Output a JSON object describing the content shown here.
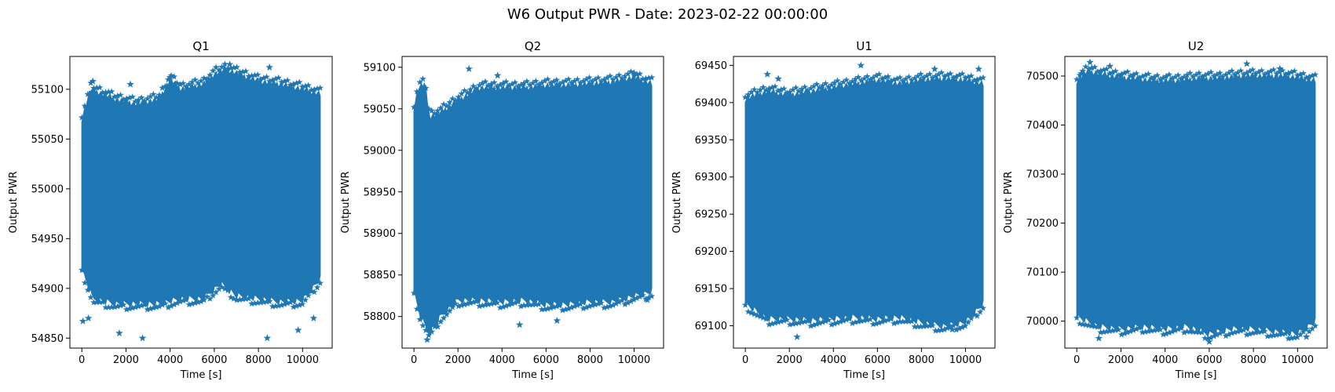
{
  "figure": {
    "title": "W6 Output PWR - Date: 2023-02-22 00:00:00",
    "marker": "star",
    "point_color": "#1f77b4"
  },
  "chart_data": [
    {
      "type": "scatter",
      "title": "Q1",
      "xlabel": "Time [s]",
      "ylabel": "Output PWR",
      "xlim": [
        -540,
        11340
      ],
      "ylim": [
        54840,
        55133
      ],
      "xticks": [
        0,
        2000,
        4000,
        6000,
        8000,
        10000
      ],
      "yticks": [
        54850,
        54900,
        54950,
        55000,
        55050,
        55100
      ],
      "grid": false,
      "x_range": [
        0,
        10800
      ],
      "upper_envelope": [
        [
          0,
          55070
        ],
        [
          400,
          55100
        ],
        [
          1500,
          55090
        ],
        [
          2500,
          55085
        ],
        [
          3500,
          55090
        ],
        [
          4000,
          55110
        ],
        [
          4500,
          55100
        ],
        [
          5500,
          55105
        ],
        [
          6000,
          55115
        ],
        [
          6500,
          55120
        ],
        [
          8000,
          55108
        ],
        [
          9000,
          55105
        ],
        [
          10000,
          55100
        ],
        [
          10800,
          55095
        ]
      ],
      "lower_envelope": [
        [
          0,
          54920
        ],
        [
          500,
          54890
        ],
        [
          1500,
          54885
        ],
        [
          2500,
          54885
        ],
        [
          3500,
          54885
        ],
        [
          4500,
          54890
        ],
        [
          5500,
          54890
        ],
        [
          6300,
          54905
        ],
        [
          7000,
          54893
        ],
        [
          8000,
          54890
        ],
        [
          9000,
          54887
        ],
        [
          10000,
          54888
        ],
        [
          10800,
          54910
        ]
      ],
      "outliers": [
        [
          50,
          54867
        ],
        [
          300,
          54870
        ],
        [
          1700,
          54855
        ],
        [
          2750,
          54850
        ],
        [
          8400,
          54850
        ],
        [
          9800,
          54858
        ],
        [
          10500,
          54870
        ],
        [
          500,
          55108
        ],
        [
          2200,
          55105
        ],
        [
          6700,
          55125
        ],
        [
          8500,
          55122
        ],
        [
          4000,
          55112
        ]
      ]
    },
    {
      "type": "scatter",
      "title": "Q2",
      "xlabel": "Time [s]",
      "ylabel": "Output PWR",
      "xlim": [
        -540,
        11340
      ],
      "ylim": [
        58762,
        59113
      ],
      "xticks": [
        0,
        2000,
        4000,
        6000,
        8000,
        10000
      ],
      "yticks": [
        58800,
        58850,
        58900,
        58950,
        59000,
        59050,
        59100
      ],
      "grid": false,
      "x_range": [
        0,
        10800
      ],
      "upper_envelope": [
        [
          0,
          59050
        ],
        [
          200,
          59075
        ],
        [
          500,
          59080
        ],
        [
          700,
          59040
        ],
        [
          1200,
          59045
        ],
        [
          2000,
          59060
        ],
        [
          3000,
          59075
        ],
        [
          4000,
          59075
        ],
        [
          5000,
          59075
        ],
        [
          6000,
          59078
        ],
        [
          7000,
          59078
        ],
        [
          8000,
          59080
        ],
        [
          9000,
          59082
        ],
        [
          10000,
          59088
        ],
        [
          10800,
          59080
        ]
      ],
      "lower_envelope": [
        [
          0,
          58830
        ],
        [
          300,
          58800
        ],
        [
          700,
          58780
        ],
        [
          1200,
          58800
        ],
        [
          2000,
          58820
        ],
        [
          3000,
          58820
        ],
        [
          4000,
          58818
        ],
        [
          5000,
          58820
        ],
        [
          6000,
          58815
        ],
        [
          7000,
          58815
        ],
        [
          8000,
          58818
        ],
        [
          9000,
          58818
        ],
        [
          10000,
          58825
        ],
        [
          10800,
          58830
        ]
      ],
      "outliers": [
        [
          600,
          58772
        ],
        [
          1000,
          58790
        ],
        [
          4800,
          58790
        ],
        [
          6500,
          58795
        ],
        [
          2500,
          59098
        ],
        [
          3800,
          59090
        ],
        [
          10000,
          59093
        ],
        [
          10600,
          58820
        ]
      ]
    },
    {
      "type": "scatter",
      "title": "U1",
      "xlabel": "Time [s]",
      "ylabel": "Output PWR",
      "xlim": [
        -540,
        11340
      ],
      "ylim": [
        69070,
        69462
      ],
      "xticks": [
        0,
        2000,
        4000,
        6000,
        8000,
        10000
      ],
      "yticks": [
        69100,
        69150,
        69200,
        69250,
        69300,
        69350,
        69400,
        69450
      ],
      "grid": false,
      "x_range": [
        0,
        10800
      ],
      "upper_envelope": [
        [
          0,
          69405
        ],
        [
          1000,
          69415
        ],
        [
          2000,
          69410
        ],
        [
          3000,
          69415
        ],
        [
          4000,
          69420
        ],
        [
          5000,
          69425
        ],
        [
          6000,
          69430
        ],
        [
          7000,
          69425
        ],
        [
          8000,
          69430
        ],
        [
          9000,
          69432
        ],
        [
          10000,
          69430
        ],
        [
          10800,
          69425
        ]
      ],
      "lower_envelope": [
        [
          0,
          69130
        ],
        [
          1000,
          69110
        ],
        [
          2000,
          69110
        ],
        [
          3000,
          69108
        ],
        [
          4000,
          69110
        ],
        [
          5000,
          69112
        ],
        [
          6000,
          69110
        ],
        [
          7000,
          69112
        ],
        [
          8000,
          69105
        ],
        [
          9000,
          69100
        ],
        [
          10000,
          69105
        ],
        [
          10800,
          69130
        ]
      ],
      "outliers": [
        [
          1000,
          69438
        ],
        [
          1500,
          69432
        ],
        [
          5250,
          69450
        ],
        [
          2350,
          69085
        ],
        [
          8600,
          69445
        ],
        [
          10600,
          69445
        ],
        [
          9400,
          69095
        ]
      ]
    },
    {
      "type": "scatter",
      "title": "U2",
      "xlabel": "Time [s]",
      "ylabel": "Output PWR",
      "xlim": [
        -540,
        11340
      ],
      "ylim": [
        69945,
        70540
      ],
      "xticks": [
        0,
        2000,
        4000,
        6000,
        8000,
        10000
      ],
      "yticks": [
        70000,
        70100,
        70200,
        70300,
        70400,
        70500
      ],
      "grid": false,
      "x_range": [
        0,
        10800
      ],
      "upper_envelope": [
        [
          0,
          70490
        ],
        [
          500,
          70510
        ],
        [
          1500,
          70500
        ],
        [
          2500,
          70495
        ],
        [
          3500,
          70490
        ],
        [
          4500,
          70490
        ],
        [
          5500,
          70495
        ],
        [
          6500,
          70495
        ],
        [
          7500,
          70500
        ],
        [
          8500,
          70500
        ],
        [
          9500,
          70500
        ],
        [
          10800,
          70490
        ]
      ],
      "lower_envelope": [
        [
          0,
          70010
        ],
        [
          1000,
          69990
        ],
        [
          2000,
          69985
        ],
        [
          3000,
          69990
        ],
        [
          4000,
          69985
        ],
        [
          5000,
          69990
        ],
        [
          6000,
          69975
        ],
        [
          7000,
          69985
        ],
        [
          8000,
          69985
        ],
        [
          9000,
          69980
        ],
        [
          10000,
          69975
        ],
        [
          10800,
          70000
        ]
      ],
      "outliers": [
        [
          600,
          70528
        ],
        [
          1500,
          70520
        ],
        [
          7700,
          70525
        ],
        [
          9200,
          70515
        ],
        [
          1000,
          69965
        ],
        [
          6000,
          69958
        ],
        [
          10400,
          69968
        ],
        [
          200,
          70505
        ]
      ]
    }
  ]
}
